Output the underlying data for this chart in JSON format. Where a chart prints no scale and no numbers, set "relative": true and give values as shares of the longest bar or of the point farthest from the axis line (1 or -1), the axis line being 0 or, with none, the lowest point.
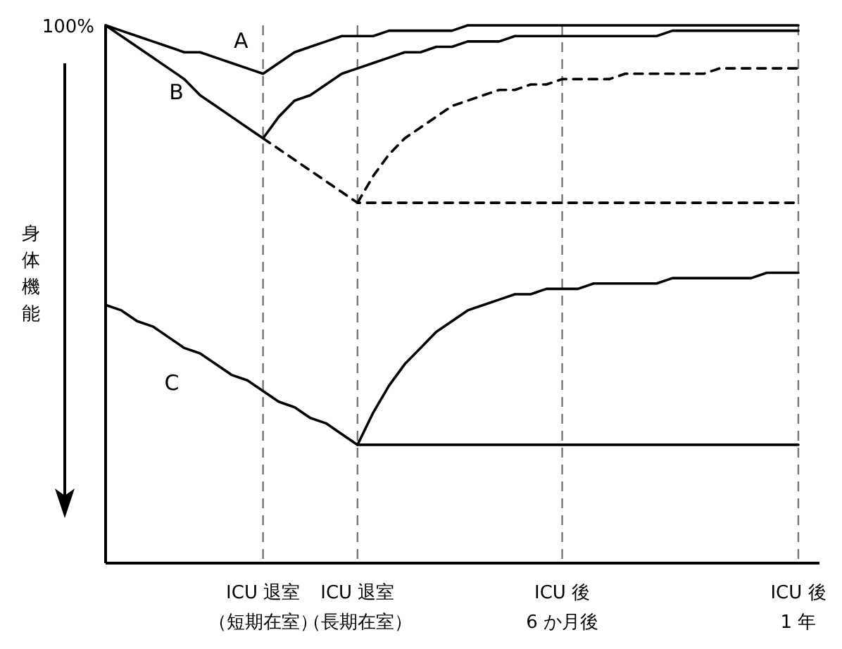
{
  "chart_data": {
    "type": "line",
    "relative": true,
    "ylabel": "身体機能",
    "annotations": [
      "100%"
    ],
    "grid": "x",
    "legend": false,
    "categories": [
      null,
      null,
      null,
      null,
      null,
      null,
      null,
      null,
      null,
      null,
      "ICU 退室（短期在室）",
      null,
      null,
      null,
      null,
      null,
      "ICU 退室（長期在室）",
      null,
      null,
      null,
      null,
      null,
      null,
      null,
      null,
      null,
      null,
      null,
      null,
      "ICU 後6 か月後",
      null,
      null,
      null,
      null,
      null,
      null,
      null,
      null,
      null,
      null,
      null,
      null,
      null,
      null,
      "ICU 後1 年"
    ],
    "series": [
      {
        "name": "A",
        "color": "#000000",
        "line_style": "solid",
        "values": [
          1.0,
          0.99,
          0.98,
          0.97,
          0.96,
          0.95,
          0.95,
          0.94,
          0.93,
          0.92,
          0.91,
          0.93,
          0.95,
          0.96,
          0.97,
          0.98,
          0.98,
          0.98,
          0.99,
          0.99,
          0.99,
          0.99,
          0.99,
          1.0,
          1.0,
          1.0,
          1.0,
          1.0,
          1.0,
          1.0,
          1.0,
          1.0,
          1.0,
          1.0,
          1.0,
          1.0,
          1.0,
          1.0,
          1.0,
          1.0,
          1.0,
          1.0,
          1.0,
          1.0,
          1.0
        ]
      },
      {
        "name": "B",
        "color": "#000000",
        "line_style": "solid",
        "values": [
          1.0,
          0.98,
          0.96,
          0.94,
          0.92,
          0.9,
          0.87,
          0.85,
          0.83,
          0.81,
          0.79,
          0.83,
          0.86,
          0.87,
          0.89,
          0.91,
          0.92,
          0.93,
          0.94,
          0.95,
          0.95,
          0.96,
          0.96,
          0.97,
          0.97,
          0.97,
          0.98,
          0.98,
          0.98,
          0.98,
          0.98,
          0.98,
          0.98,
          0.98,
          0.98,
          0.98,
          0.99,
          0.99,
          0.99,
          0.99,
          0.99,
          0.99,
          0.99,
          0.99,
          0.99
        ]
      },
      {
        "color": "#000000",
        "line_style": "dashed",
        "values": [
          null,
          null,
          null,
          null,
          null,
          null,
          null,
          null,
          null,
          null,
          0.79,
          0.77,
          0.75,
          0.73,
          0.71,
          0.69,
          0.67,
          0.67,
          0.67,
          0.67,
          0.67,
          0.67,
          0.67,
          0.67,
          0.67,
          0.67,
          0.67,
          0.67,
          0.67,
          0.67,
          0.67,
          0.67,
          0.67,
          0.67,
          0.67,
          0.67,
          0.67,
          0.67,
          0.67,
          0.67,
          0.67,
          0.67,
          0.67,
          0.67,
          0.67
        ]
      },
      {
        "color": "#000000",
        "line_style": "dashed",
        "values": [
          null,
          null,
          null,
          null,
          null,
          null,
          null,
          null,
          null,
          null,
          null,
          null,
          null,
          null,
          null,
          null,
          0.67,
          0.72,
          0.76,
          0.79,
          0.81,
          0.83,
          0.85,
          0.86,
          0.87,
          0.88,
          0.88,
          0.89,
          0.89,
          0.9,
          0.9,
          0.9,
          0.9,
          0.91,
          0.91,
          0.91,
          0.91,
          0.91,
          0.91,
          0.92,
          0.92,
          0.92,
          0.92,
          0.92,
          0.92
        ]
      },
      {
        "name": "C",
        "color": "#000000",
        "line_style": "solid",
        "values": [
          0.48,
          0.47,
          0.45,
          0.44,
          0.42,
          0.4,
          0.39,
          0.37,
          0.35,
          0.34,
          0.32,
          0.3,
          0.29,
          0.27,
          0.26,
          0.24,
          0.22,
          0.22,
          0.22,
          0.22,
          0.22,
          0.22,
          0.22,
          0.22,
          0.22,
          0.22,
          0.22,
          0.22,
          0.22,
          0.22,
          0.22,
          0.22,
          0.22,
          0.22,
          0.22,
          0.22,
          0.22,
          0.22,
          0.22,
          0.22,
          0.22,
          0.22,
          0.22,
          0.22,
          0.22
        ]
      },
      {
        "color": "#000000",
        "line_style": "solid",
        "values": [
          null,
          null,
          null,
          null,
          null,
          null,
          null,
          null,
          null,
          null,
          null,
          null,
          null,
          null,
          null,
          null,
          0.22,
          0.28,
          0.33,
          0.37,
          0.4,
          0.43,
          0.45,
          0.47,
          0.48,
          0.49,
          0.5,
          0.5,
          0.51,
          0.51,
          0.51,
          0.52,
          0.52,
          0.52,
          0.52,
          0.52,
          0.53,
          0.53,
          0.53,
          0.53,
          0.53,
          0.53,
          0.54,
          0.54,
          0.54
        ]
      }
    ]
  }
}
